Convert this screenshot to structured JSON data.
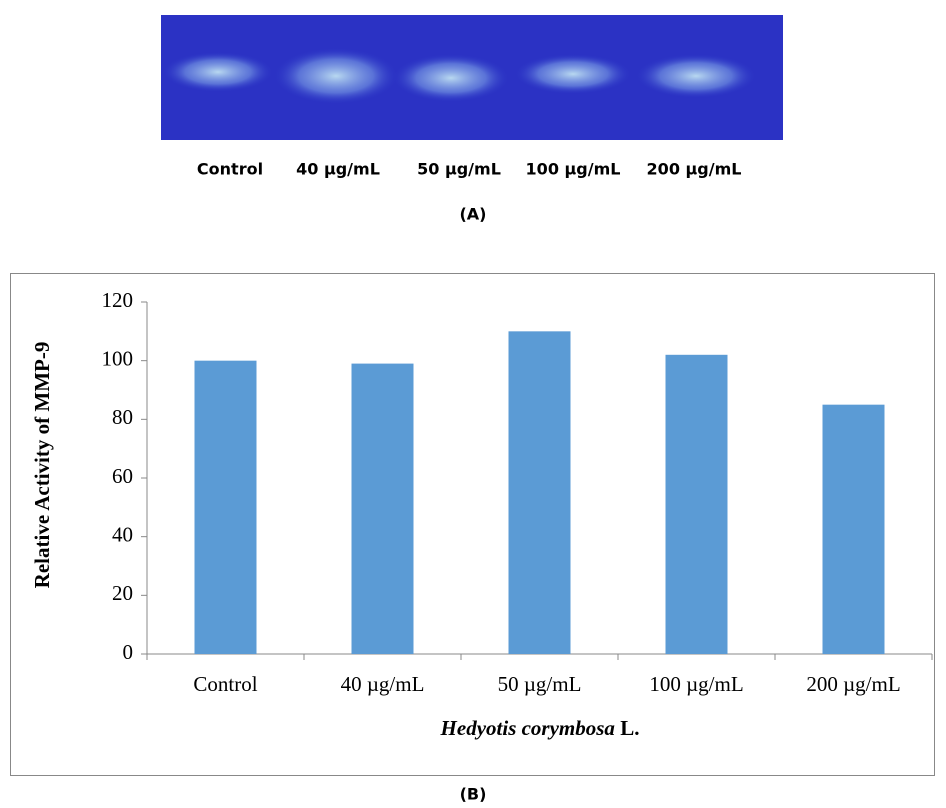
{
  "panel_a": {
    "lane_labels": [
      "Control",
      "40 µg/mL",
      "50 µg/mL",
      "100 µg/mL",
      "200 µg/mL"
    ],
    "caption": "(A)"
  },
  "chart_data": {
    "type": "bar",
    "ylabel": "Relative Activity of MMP-9",
    "xlabel": {
      "species": "Hedyotis corymbosa",
      "authority": "L."
    },
    "categories": [
      "Control",
      "40 µg/mL",
      "50 µg/mL",
      "100 µg/mL",
      "200 µg/mL"
    ],
    "values": [
      100,
      99,
      110,
      102,
      85
    ],
    "color": "#5b9bd5",
    "ylim": [
      0,
      120
    ],
    "yticks": [
      0,
      20,
      40,
      60,
      80,
      100,
      120
    ],
    "grid": false
  },
  "panel_b_caption": "(B)"
}
